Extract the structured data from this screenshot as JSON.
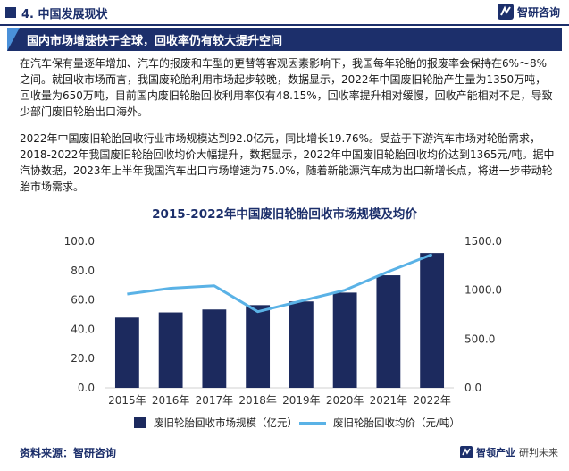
{
  "header": {
    "section_title": "4. 中国发展现状",
    "logo_text": "智研咨询"
  },
  "banner": {
    "title": "国内市场增速快于全球，回收率仍有较大提升空间"
  },
  "paragraphs": [
    "在汽车保有量逐年增加、汽车的报废和车型的更替等客观因素影响下，我国每年轮胎的报废率会保持在6%～8%之间。就回收市场而言，我国废轮胎利用市场起步较晚，数据显示，2022年中国废旧轮胎产生量为1350万吨，回收量为650万吨，目前国内废旧轮胎回收利用率仅有48.15%，回收率提升相对缓慢，回收产能相对不足，导致少部门废旧轮胎出口海外。",
    "2022年中国废旧轮胎回收行业市场规模达到92.0亿元，同比增长19.76%。受益于下游汽车市场对轮胎需求，2018-2022年我国废旧轮胎回收均价大幅提升，数据显示，2022年中国废旧轮胎回收均价达到1365元/吨。据中汽协数据，2023年上半年我国汽车出口市场增速为75.0%，随着新能源汽车成为出口新增长点，将进一步带动轮胎市场需求。"
  ],
  "chart_data": {
    "type": "bar",
    "title": "2015-2022年中国废旧轮胎回收市场规模及均价",
    "categories": [
      "2015年",
      "2016年",
      "2017年",
      "2018年",
      "2019年",
      "2020年",
      "2021年",
      "2022年"
    ],
    "series": [
      {
        "name": "废旧轮胎回收市场规模（亿元）",
        "type": "bar",
        "axis": "left",
        "color": "#1c2a5e",
        "values": [
          48.0,
          51.5,
          53.5,
          56.5,
          59.0,
          65.0,
          76.8,
          92.0
        ]
      },
      {
        "name": "废旧轮胎回收均价（元/吨）",
        "type": "line",
        "axis": "right",
        "color": "#5ab2e6",
        "values": [
          960,
          1020,
          1045,
          780,
          890,
          1000,
          1190,
          1365
        ]
      }
    ],
    "y_left": {
      "min": 0,
      "max": 100,
      "ticks": [
        "0.0",
        "20.0",
        "40.0",
        "60.0",
        "80.0",
        "100.0"
      ]
    },
    "y_right": {
      "min": 0,
      "max": 1500,
      "ticks": [
        "0.0",
        "500.0",
        "1000.0",
        "1500.0"
      ]
    },
    "grid": false,
    "legend": "bottom"
  },
  "source": "资料来源：智研咨询",
  "footer": {
    "brand_a": "智领产业",
    "brand_b": "研判未来"
  }
}
